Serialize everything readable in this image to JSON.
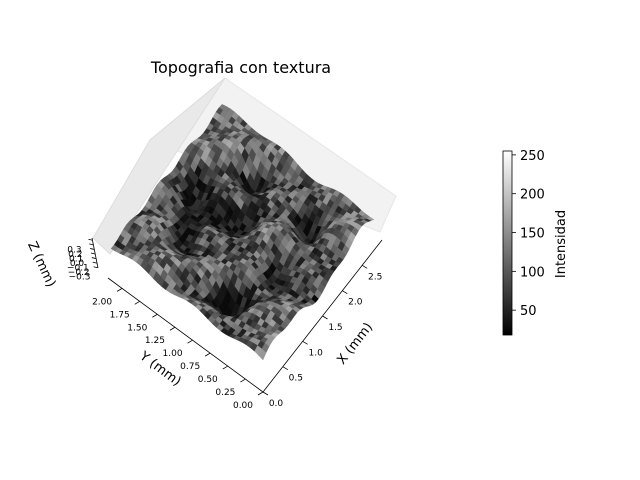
{
  "chart_data": {
    "type": "surface3d",
    "title": "Topografia con textura",
    "xlabel": "X (mm)",
    "ylabel": "Y (mm)",
    "zlabel": "Z (mm)",
    "xlim": [
      0,
      3
    ],
    "ylim": [
      0,
      2.2
    ],
    "zlim": [
      -0.35,
      0.35
    ],
    "x_ticks": [
      "0.0",
      "0.5",
      "1.0",
      "1.5",
      "2.0",
      "2.5"
    ],
    "y_ticks": [
      "0.00",
      "0.25",
      "0.50",
      "0.75",
      "1.00",
      "1.25",
      "1.50",
      "1.75",
      "2.00"
    ],
    "z_ticks": [
      "−0.3",
      "−0.2",
      "−0.1",
      "0.0",
      "0.1",
      "0.2",
      "0.3"
    ],
    "surface_description": "textured surface with grayscale intensity noise and several circular pits",
    "colormap": "gray",
    "colorbar": {
      "label": "Intensidad",
      "range": [
        18,
        255
      ],
      "ticks": [
        "50",
        "100",
        "150",
        "200",
        "250"
      ]
    },
    "grid": false
  }
}
